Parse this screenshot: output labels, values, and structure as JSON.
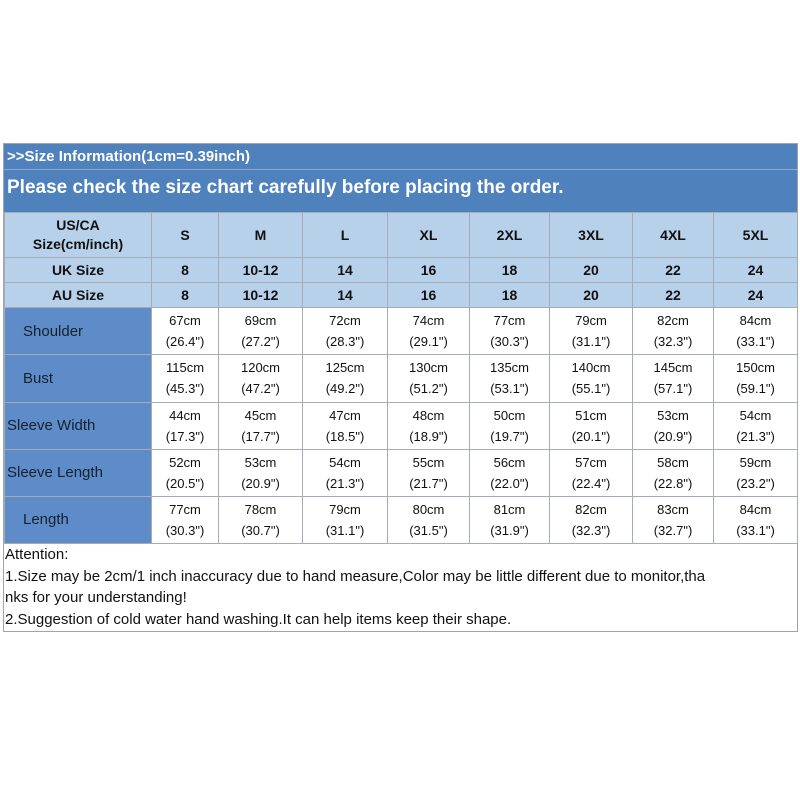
{
  "header": {
    "size_note": ">>Size Information(1cm=0.39inch)",
    "headline": "Please check the size chart carefully before placing the order."
  },
  "size_table": {
    "us_ca_label_line1": "US/CA",
    "us_ca_label_line2": "Size(cm/inch)",
    "sizes": [
      "S",
      "M",
      "L",
      "XL",
      "2XL",
      "3XL",
      "4XL",
      "5XL"
    ],
    "uk_label": "UK Size",
    "uk_sizes": [
      "8",
      "10-12",
      "14",
      "16",
      "18",
      "20",
      "22",
      "24"
    ],
    "au_label": "AU Size",
    "au_sizes": [
      "8",
      "10-12",
      "14",
      "16",
      "18",
      "20",
      "22",
      "24"
    ],
    "measurements": [
      {
        "label": "Shoulder",
        "cm": [
          "67cm",
          "69cm",
          "72cm",
          "74cm",
          "77cm",
          "79cm",
          "82cm",
          "84cm"
        ],
        "inch": [
          "(26.4\")",
          "(27.2\")",
          "(28.3\")",
          "(29.1\")",
          "(30.3\")",
          "(31.1\")",
          "(32.3\")",
          "(33.1\")"
        ]
      },
      {
        "label": "Bust",
        "cm": [
          "115cm",
          "120cm",
          "125cm",
          "130cm",
          "135cm",
          "140cm",
          "145cm",
          "150cm"
        ],
        "inch": [
          "(45.3\")",
          "(47.2\")",
          "(49.2\")",
          "(51.2\")",
          "(53.1\")",
          "(55.1\")",
          "(57.1\")",
          "(59.1\")"
        ]
      },
      {
        "label": "Sleeve Width",
        "cm": [
          "44cm",
          "45cm",
          "47cm",
          "48cm",
          "50cm",
          "51cm",
          "53cm",
          "54cm"
        ],
        "inch": [
          "(17.3\")",
          "(17.7\")",
          "(18.5\")",
          "(18.9\")",
          "(19.7\")",
          "(20.1\")",
          "(20.9\")",
          "(21.3\")"
        ]
      },
      {
        "label": "Sleeve Length",
        "cm": [
          "52cm",
          "53cm",
          "54cm",
          "55cm",
          "56cm",
          "57cm",
          "58cm",
          "59cm"
        ],
        "inch": [
          "(20.5\")",
          "(20.9\")",
          "(21.3\")",
          "(21.7\")",
          "(22.0\")",
          "(22.4\")",
          "(22.8\")",
          "(23.2\")"
        ]
      },
      {
        "label": "Length",
        "cm": [
          "77cm",
          "78cm",
          "79cm",
          "80cm",
          "81cm",
          "82cm",
          "83cm",
          "84cm"
        ],
        "inch": [
          "(30.3\")",
          "(30.7\")",
          "(31.1\")",
          "(31.5\")",
          "(31.9\")",
          "(32.3\")",
          "(32.7\")",
          "(33.1\")"
        ]
      }
    ]
  },
  "attention": {
    "title": "Attention:",
    "line1a": "1.Size may be 2cm/1 inch inaccuracy due to hand measure,Color may be little different due to monitor,tha",
    "line1b": "nks for your understanding!",
    "line2": "2.Suggestion of cold water hand washing.It can help items keep their shape."
  },
  "colors": {
    "header_bg": "#4f81bd",
    "size_row_bg": "#b8d1eb",
    "measure_label_bg": "#5d8cc9",
    "border": "#a7abb3"
  }
}
